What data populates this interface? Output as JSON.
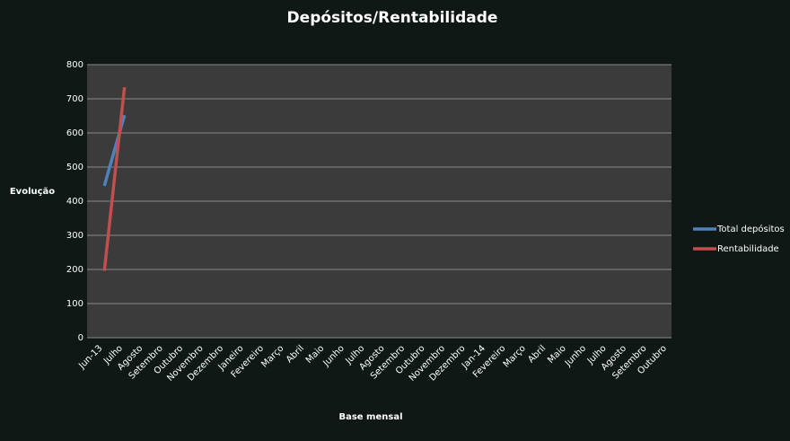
{
  "chart_data": {
    "type": "line",
    "title": "Depósitos/Rentabilidade",
    "y_label": "Evolução",
    "x_label": "Base mensal",
    "categories": [
      "Jun-13",
      "Julho",
      "Agosto",
      "Setembro",
      "Outubro",
      "Novembro",
      "Dezembro",
      "Janeiro",
      "Fevereiro",
      "Março",
      "Abril",
      "Maio",
      "Junho",
      "Julho",
      "Agosto",
      "Setembro",
      "Outubro",
      "Novembro",
      "Dezembro",
      "Jan-14",
      "Fevereiro",
      "Março",
      "Abril",
      "Maio",
      "Junho",
      "Julho",
      "Agosto",
      "Setembro",
      "Outubro"
    ],
    "series": [
      {
        "name": "Total depósitos",
        "color": "#4f81bd",
        "values": [
          445,
          652,
          null,
          null,
          null,
          null,
          null,
          null,
          null,
          null,
          null,
          null,
          null,
          null,
          null,
          null,
          null,
          null,
          null,
          null,
          null,
          null,
          null,
          null,
          null,
          null,
          null,
          null,
          null
        ]
      },
      {
        "name": "Rentabilidade",
        "color": "#c0504d",
        "values": [
          196,
          734,
          null,
          null,
          null,
          null,
          null,
          null,
          null,
          null,
          null,
          null,
          null,
          null,
          null,
          null,
          null,
          null,
          null,
          null,
          null,
          null,
          null,
          null,
          null,
          null,
          null,
          null,
          null
        ]
      }
    ],
    "ylim": [
      0,
      800
    ],
    "yticks": [
      0,
      100,
      200,
      300,
      400,
      500,
      600,
      700,
      800
    ],
    "grid": true,
    "legend": "right"
  }
}
